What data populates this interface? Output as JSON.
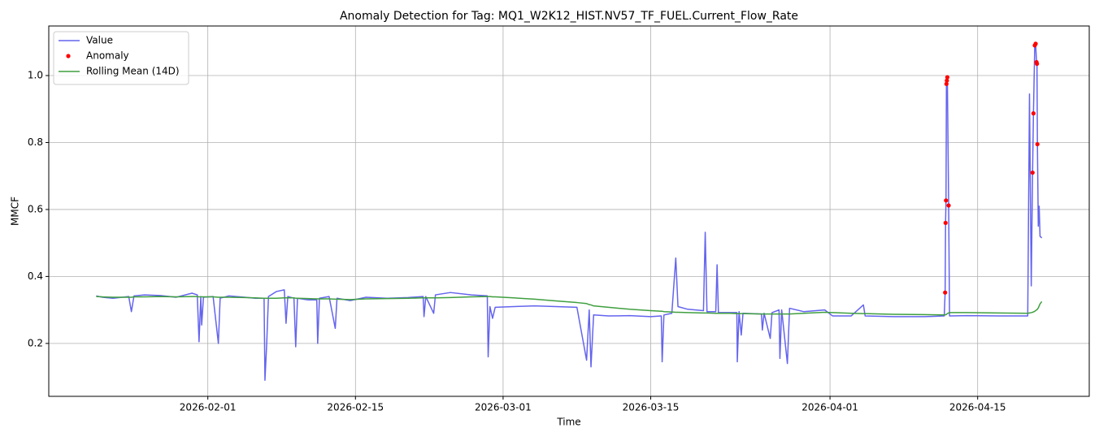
{
  "chart_data": {
    "type": "line",
    "title": "Anomaly Detection for Tag: MQ1_W2K12_HIST.NV57_TF_FUEL.Current_Flow_Rate",
    "xlabel": "Time",
    "ylabel": "MMCF",
    "x": [
      "2026-01-21 10:00",
      "2026-01-22 00:00",
      "2026-01-23 00:00",
      "2026-01-24 12:00",
      "2026-01-24 18:00",
      "2026-01-25 00:00",
      "2026-01-26 00:00",
      "2026-01-27 12:00",
      "2026-01-29 00:00",
      "2026-01-30 12:00",
      "2026-01-31 00:00",
      "2026-01-31 04:00",
      "2026-01-31 08:00",
      "2026-01-31 10:00",
      "2026-01-31 14:00",
      "2026-02-01 12:00",
      "2026-02-02 00:00",
      "2026-02-02 04:00",
      "2026-02-03 00:00",
      "2026-02-04 12:00",
      "2026-02-05 12:00",
      "2026-02-06 08:00",
      "2026-02-06 10:00",
      "2026-02-06 14:00",
      "2026-02-06 18:00",
      "2026-02-07 12:00",
      "2026-02-08 06:00",
      "2026-02-08 10:00",
      "2026-02-08 14:00",
      "2026-02-09 04:00",
      "2026-02-09 08:00",
      "2026-02-09 12:00",
      "2026-02-10 12:00",
      "2026-02-11 08:00",
      "2026-02-11 10:00",
      "2026-02-11 14:00",
      "2026-02-12 12:00",
      "2026-02-13 02:00",
      "2026-02-13 06:00",
      "2026-02-14 12:00",
      "2026-02-16 00:00",
      "2026-02-18 00:00",
      "2026-02-20 00:00",
      "2026-02-21 10:00",
      "2026-02-21 12:00",
      "2026-02-21 16:00",
      "2026-02-22 10:00",
      "2026-02-22 14:00",
      "2026-02-24 00:00",
      "2026-02-26 00:00",
      "2026-02-27 12:00",
      "2026-02-27 14:00",
      "2026-02-27 18:00",
      "2026-02-28 00:00",
      "2026-02-28 06:00",
      "2026-03-02 00:00",
      "2026-03-04 00:00",
      "2026-03-06 00:00",
      "2026-03-08 00:00",
      "2026-03-08 22:00",
      "2026-03-09 04:00",
      "2026-03-09 08:00",
      "2026-03-09 14:00",
      "2026-03-11 00:00",
      "2026-03-13 00:00",
      "2026-03-15 00:00",
      "2026-03-16 00:00",
      "2026-03-16 02:00",
      "2026-03-16 06:00",
      "2026-03-17 00:00",
      "2026-03-17 09:00",
      "2026-03-17 14:00",
      "2026-03-18 12:00",
      "2026-03-20 00:00",
      "2026-03-20 04:00",
      "2026-03-20 08:00",
      "2026-03-21 04:00",
      "2026-03-21 07:00",
      "2026-03-21 10:00",
      "2026-03-22 12:00",
      "2026-03-23 04:00",
      "2026-03-23 05:00",
      "2026-03-23 09:00",
      "2026-03-23 14:00",
      "2026-03-23 18:00",
      "2026-03-25 12:00",
      "2026-03-25 14:00",
      "2026-03-25 18:00",
      "2026-03-26 08:00",
      "2026-03-26 12:00",
      "2026-03-27 04:00",
      "2026-03-27 06:00",
      "2026-03-27 10:00",
      "2026-03-27 23:00",
      "2026-03-28 04:00",
      "2026-03-29 12:00",
      "2026-03-31 12:00",
      "2026-04-01 06:00",
      "2026-04-03 00:00",
      "2026-04-04 04:00",
      "2026-04-04 08:00",
      "2026-04-07 00:00",
      "2026-04-10 00:00",
      "2026-04-11 20:00",
      "2026-04-11 22:00",
      "2026-04-11 23:00",
      "2026-04-12 00:00",
      "2026-04-12 01:00",
      "2026-04-12 02:00",
      "2026-04-12 03:00",
      "2026-04-12 06:00",
      "2026-04-12 08:00",
      "2026-04-14 00:00",
      "2026-04-17 00:00",
      "2026-04-19 18:00",
      "2026-04-19 22:00",
      "2026-04-20 02:00",
      "2026-04-20 05:00",
      "2026-04-20 07:00",
      "2026-04-20 10:00",
      "2026-04-20 12:00",
      "2026-04-20 14:00",
      "2026-04-20 15:00",
      "2026-04-20 16:00",
      "2026-04-20 18:00",
      "2026-04-20 20:00",
      "2026-04-20 22:00",
      "2026-04-21 02:00"
    ],
    "series": [
      {
        "name": "Value",
        "color": "#6464ee",
        "style": "line",
        "values": [
          0.342,
          0.338,
          0.335,
          0.34,
          0.295,
          0.342,
          0.345,
          0.343,
          0.338,
          0.35,
          0.345,
          0.205,
          0.34,
          0.255,
          0.338,
          0.34,
          0.2,
          0.335,
          0.342,
          0.338,
          0.335,
          0.335,
          0.09,
          0.2,
          0.34,
          0.355,
          0.36,
          0.26,
          0.34,
          0.335,
          0.19,
          0.335,
          0.33,
          0.33,
          0.2,
          0.335,
          0.34,
          0.245,
          0.335,
          0.328,
          0.338,
          0.335,
          0.337,
          0.34,
          0.28,
          0.34,
          0.29,
          0.345,
          0.352,
          0.345,
          0.342,
          0.16,
          0.31,
          0.275,
          0.308,
          0.31,
          0.312,
          0.31,
          0.308,
          0.15,
          0.3,
          0.13,
          0.285,
          0.282,
          0.283,
          0.28,
          0.282,
          0.145,
          0.285,
          0.29,
          0.455,
          0.31,
          0.302,
          0.298,
          0.532,
          0.295,
          0.295,
          0.435,
          0.292,
          0.292,
          0.292,
          0.145,
          0.295,
          0.225,
          0.29,
          0.288,
          0.24,
          0.29,
          0.215,
          0.292,
          0.3,
          0.155,
          0.3,
          0.14,
          0.305,
          0.295,
          0.3,
          0.282,
          0.282,
          0.315,
          0.282,
          0.28,
          0.28,
          0.282,
          0.352,
          0.56,
          0.627,
          0.975,
          0.985,
          0.995,
          0.612,
          0.282,
          0.283,
          0.282,
          0.282,
          0.945,
          0.372,
          0.71,
          0.887,
          1.09,
          1.095,
          1.04,
          1.035,
          0.795,
          0.55,
          0.61,
          0.52,
          0.515
        ]
      },
      {
        "name": "Anomaly",
        "color": "#ff0000",
        "style": "scatter",
        "values": [
          null,
          null,
          null,
          null,
          null,
          null,
          null,
          null,
          null,
          null,
          null,
          null,
          null,
          null,
          null,
          null,
          null,
          null,
          null,
          null,
          null,
          null,
          null,
          null,
          null,
          null,
          null,
          null,
          null,
          null,
          null,
          null,
          null,
          null,
          null,
          null,
          null,
          null,
          null,
          null,
          null,
          null,
          null,
          null,
          null,
          null,
          null,
          null,
          null,
          null,
          null,
          null,
          null,
          null,
          null,
          null,
          null,
          null,
          null,
          null,
          null,
          null,
          null,
          null,
          null,
          null,
          null,
          null,
          null,
          null,
          null,
          null,
          null,
          null,
          null,
          null,
          null,
          null,
          null,
          null,
          null,
          null,
          null,
          null,
          null,
          null,
          null,
          null,
          null,
          null,
          null,
          null,
          null,
          null,
          null,
          null,
          null,
          null,
          null,
          null,
          null,
          null,
          null,
          null,
          0.352,
          0.56,
          0.627,
          0.975,
          0.985,
          0.995,
          0.612,
          null,
          null,
          null,
          null,
          null,
          null,
          0.71,
          0.887,
          1.09,
          1.095,
          1.04,
          1.035,
          0.795,
          null,
          null,
          null,
          null
        ]
      },
      {
        "name": "Rolling Mean (14D)",
        "color": "#3f9f3f",
        "style": "line",
        "values": [
          0.34,
          0.339,
          0.338,
          0.338,
          0.338,
          0.339,
          0.339,
          0.34,
          0.339,
          0.34,
          0.34,
          0.339,
          0.339,
          0.339,
          0.339,
          0.339,
          0.338,
          0.338,
          0.338,
          0.337,
          0.336,
          0.335,
          0.335,
          0.335,
          0.335,
          0.335,
          0.336,
          0.336,
          0.336,
          0.336,
          0.335,
          0.335,
          0.334,
          0.333,
          0.333,
          0.333,
          0.333,
          0.332,
          0.332,
          0.331,
          0.333,
          0.334,
          0.335,
          0.336,
          0.336,
          0.336,
          0.336,
          0.336,
          0.337,
          0.339,
          0.34,
          0.34,
          0.34,
          0.339,
          0.339,
          0.336,
          0.332,
          0.327,
          0.322,
          0.319,
          0.316,
          0.315,
          0.312,
          0.308,
          0.302,
          0.298,
          0.296,
          0.296,
          0.295,
          0.294,
          0.293,
          0.293,
          0.292,
          0.291,
          0.291,
          0.291,
          0.29,
          0.29,
          0.29,
          0.29,
          0.289,
          0.289,
          0.289,
          0.289,
          0.289,
          0.288,
          0.288,
          0.288,
          0.288,
          0.288,
          0.288,
          0.288,
          0.288,
          0.288,
          0.288,
          0.29,
          0.293,
          0.292,
          0.29,
          0.289,
          0.289,
          0.287,
          0.286,
          0.285,
          0.285,
          0.286,
          0.286,
          0.287,
          0.288,
          0.289,
          0.291,
          0.292,
          0.292,
          0.291,
          0.29,
          0.291,
          0.292,
          0.293,
          0.294,
          0.296,
          0.298,
          0.3,
          0.301,
          0.302,
          0.306,
          0.312,
          0.318,
          0.325
        ]
      }
    ],
    "xlim": [
      "2026-01-16 22:00",
      "2026-04-25 14:00"
    ],
    "xticks": [
      "2026-02-01",
      "2026-02-15",
      "2026-03-01",
      "2026-03-15",
      "2026-04-01",
      "2026-04-15"
    ],
    "ylim": [
      0.042,
      1.148
    ],
    "yticks": [
      0.2,
      0.4,
      0.6,
      0.8,
      {
        "value": 1,
        "label": "1.0"
      }
    ],
    "grid": true,
    "legend": "upper left"
  }
}
